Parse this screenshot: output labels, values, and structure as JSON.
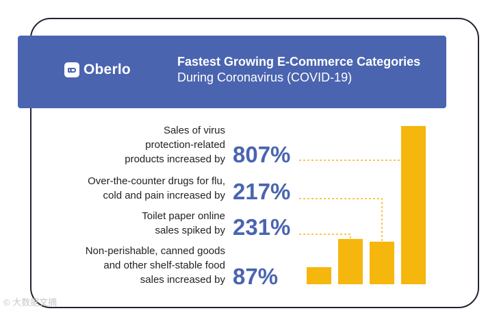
{
  "header": {
    "brand": "Oberlo",
    "title_line1": "Fastest Growing E-Commerce Categories",
    "title_line2": "During Coronavirus (COVID-19)"
  },
  "stats": [
    {
      "lines": [
        "Sales of virus",
        "protection-related",
        "products increased by"
      ],
      "value_label": "807%"
    },
    {
      "lines": [
        "Over-the-counter drugs for flu,",
        "cold and pain increased by"
      ],
      "value_label": "217%"
    },
    {
      "lines": [
        "Toilet paper online",
        "sales spiked by"
      ],
      "value_label": "231%"
    },
    {
      "lines": [
        "Non-perishable, canned goods",
        "and other shelf-stable food",
        "sales increased by"
      ],
      "value_label": "87%"
    }
  ],
  "chart_data": {
    "type": "bar",
    "title": "Fastest Growing E-Commerce Categories During Coronavirus (COVID-19)",
    "categories": [
      "Non-perishable, canned goods and other shelf-stable food",
      "Toilet paper online",
      "Over-the-counter drugs for flu, cold and pain",
      "Virus protection-related products"
    ],
    "values": [
      87,
      231,
      217,
      807
    ],
    "unit": "%",
    "bar_color": "#f5b60d",
    "leader_color": "#f5b60d"
  },
  "watermark": "© 大数据文摘"
}
